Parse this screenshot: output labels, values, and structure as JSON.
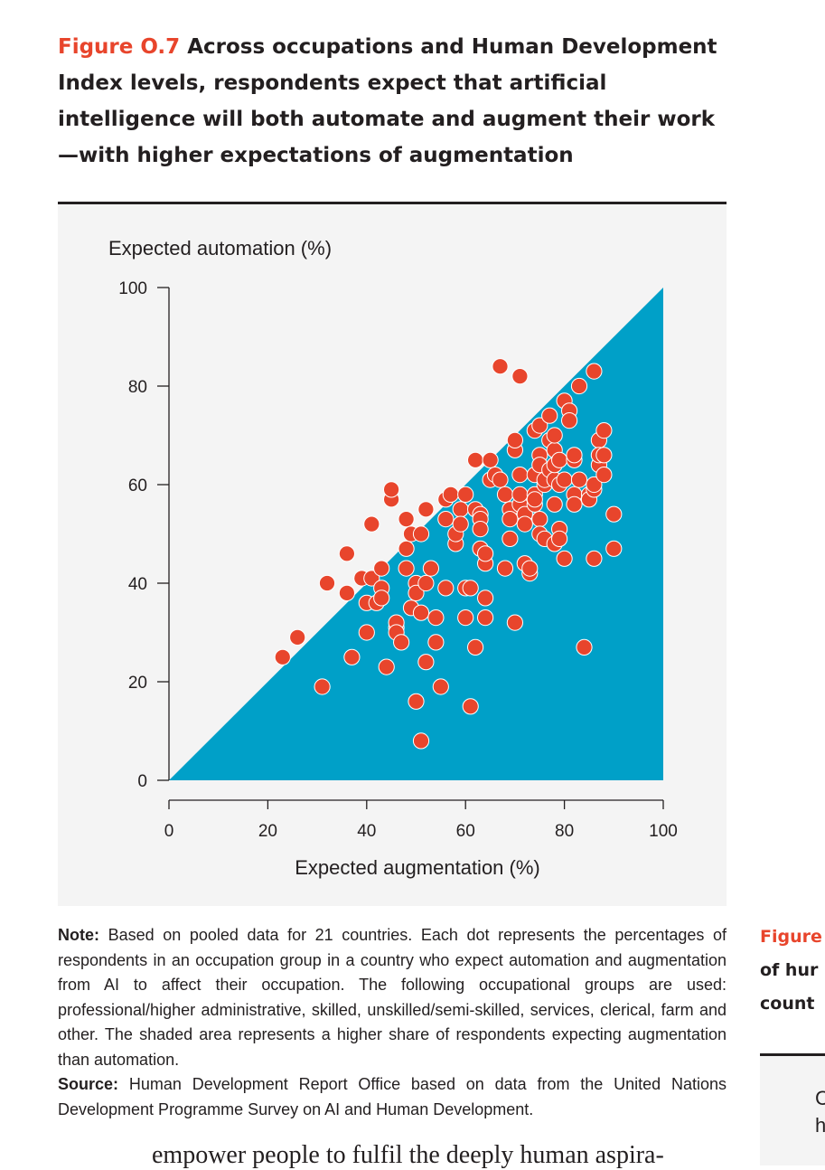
{
  "figure": {
    "label": "Figure O.7",
    "title": "Across occupations and Human Development Index levels, respondents expect that artificial intelligence will both automate and augment their work—with higher expectations of augmentation"
  },
  "chart_data": {
    "type": "scatter",
    "xlabel": "Expected augmentation (%)",
    "ylabel": "Expected automation (%)",
    "xlim": [
      0,
      100
    ],
    "ylim": [
      0,
      100
    ],
    "xticks": [
      "0",
      "20",
      "40",
      "60",
      "80",
      "100"
    ],
    "yticks": [
      "0",
      "20",
      "40",
      "60",
      "80",
      "100"
    ],
    "shaded_region": "y < x",
    "point_color": "#e8452c",
    "shade_color": "#00a0c8",
    "series": [
      {
        "name": "Occupation group in a country",
        "points": [
          [
            23,
            25
          ],
          [
            26,
            29
          ],
          [
            31,
            19
          ],
          [
            32,
            40
          ],
          [
            36,
            46
          ],
          [
            36,
            38
          ],
          [
            37,
            25
          ],
          [
            39,
            41
          ],
          [
            40,
            30
          ],
          [
            40,
            36
          ],
          [
            41,
            41
          ],
          [
            41,
            52
          ],
          [
            42,
            36
          ],
          [
            43,
            43
          ],
          [
            43,
            39
          ],
          [
            43,
            37
          ],
          [
            44,
            23
          ],
          [
            45,
            57
          ],
          [
            45,
            59
          ],
          [
            46,
            31
          ],
          [
            46,
            32
          ],
          [
            46,
            30
          ],
          [
            47,
            28
          ],
          [
            48,
            43
          ],
          [
            48,
            47
          ],
          [
            48,
            53
          ],
          [
            49,
            50
          ],
          [
            49,
            35
          ],
          [
            50,
            16
          ],
          [
            50,
            40
          ],
          [
            50,
            38
          ],
          [
            51,
            8
          ],
          [
            51,
            50
          ],
          [
            51,
            34
          ],
          [
            52,
            55
          ],
          [
            52,
            40
          ],
          [
            52,
            24
          ],
          [
            53,
            43
          ],
          [
            54,
            28
          ],
          [
            54,
            33
          ],
          [
            55,
            19
          ],
          [
            56,
            39
          ],
          [
            56,
            53
          ],
          [
            56,
            57
          ],
          [
            57,
            58
          ],
          [
            58,
            48
          ],
          [
            58,
            50
          ],
          [
            59,
            55
          ],
          [
            59,
            52
          ],
          [
            60,
            58
          ],
          [
            60,
            33
          ],
          [
            60,
            39
          ],
          [
            61,
            15
          ],
          [
            61,
            39
          ],
          [
            62,
            27
          ],
          [
            62,
            55
          ],
          [
            62,
            65
          ],
          [
            63,
            54
          ],
          [
            63,
            53
          ],
          [
            63,
            51
          ],
          [
            63,
            47
          ],
          [
            64,
            44
          ],
          [
            64,
            46
          ],
          [
            64,
            37
          ],
          [
            64,
            33
          ],
          [
            65,
            65
          ],
          [
            65,
            61
          ],
          [
            66,
            62
          ],
          [
            67,
            61
          ],
          [
            67,
            84
          ],
          [
            68,
            43
          ],
          [
            68,
            58
          ],
          [
            69,
            55
          ],
          [
            69,
            53
          ],
          [
            69,
            49
          ],
          [
            70,
            32
          ],
          [
            70,
            67
          ],
          [
            70,
            69
          ],
          [
            71,
            82
          ],
          [
            71,
            56
          ],
          [
            71,
            58
          ],
          [
            71,
            62
          ],
          [
            72,
            54
          ],
          [
            72,
            52
          ],
          [
            72,
            44
          ],
          [
            73,
            42
          ],
          [
            73,
            43
          ],
          [
            74,
            58
          ],
          [
            74,
            56
          ],
          [
            74,
            57
          ],
          [
            74,
            62
          ],
          [
            74,
            71
          ],
          [
            75,
            72
          ],
          [
            75,
            66
          ],
          [
            75,
            64
          ],
          [
            75,
            53
          ],
          [
            75,
            50
          ],
          [
            76,
            49
          ],
          [
            76,
            60
          ],
          [
            76,
            61
          ],
          [
            77,
            69
          ],
          [
            77,
            74
          ],
          [
            77,
            63
          ],
          [
            78,
            48
          ],
          [
            78,
            56
          ],
          [
            78,
            61
          ],
          [
            78,
            64
          ],
          [
            78,
            67
          ],
          [
            78,
            70
          ],
          [
            79,
            60
          ],
          [
            79,
            65
          ],
          [
            79,
            51
          ],
          [
            79,
            49
          ],
          [
            80,
            77
          ],
          [
            80,
            45
          ],
          [
            80,
            61
          ],
          [
            81,
            75
          ],
          [
            81,
            73
          ],
          [
            82,
            65
          ],
          [
            82,
            66
          ],
          [
            82,
            58
          ],
          [
            82,
            56
          ],
          [
            83,
            61
          ],
          [
            83,
            80
          ],
          [
            84,
            27
          ],
          [
            85,
            58
          ],
          [
            85,
            57
          ],
          [
            86,
            59
          ],
          [
            86,
            60
          ],
          [
            86,
            83
          ],
          [
            86,
            45
          ],
          [
            87,
            69
          ],
          [
            87,
            64
          ],
          [
            87,
            66
          ],
          [
            88,
            62
          ],
          [
            88,
            66
          ],
          [
            88,
            71
          ],
          [
            90,
            54
          ],
          [
            90,
            47
          ]
        ]
      }
    ]
  },
  "note": {
    "note_label": "Note:",
    "note_text": "Based on pooled data for 21 countries. Each dot represents the percentages of respondents in an occupation group in a country who expect automation and augmentation from AI to affect their occupation. The following occupational groups are used: professional/higher administrative, skilled, unskilled/semi-skilled, services, clerical, farm and other. The shaded area represents a higher share of respondents expecting augmentation than automation.",
    "source_label": "Source:",
    "source_text": "Human Development Report Office based on data from the United Nations Development Programme Survey on AI and Human Development."
  },
  "body_text": "empower people to fulfil the deeply human aspira-",
  "side_panel": {
    "fig_label": "Figure",
    "line2": "of hur",
    "line3": "count",
    "box_char1": "C",
    "box_char2": "h"
  }
}
